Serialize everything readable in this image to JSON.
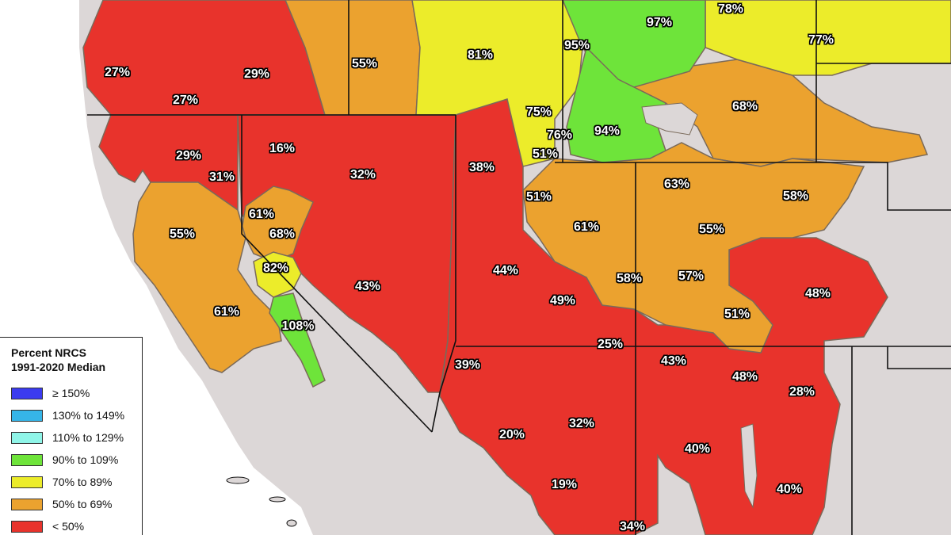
{
  "legend": {
    "title_line1": "Percent NRCS",
    "title_line2": "1991-2020 Median",
    "items": [
      {
        "label": "≥ 150%",
        "color": "#3b3bf0"
      },
      {
        "label": "130% to 149%",
        "color": "#36b5e8"
      },
      {
        "label": "110% to 129%",
        "color": "#8ff5e8"
      },
      {
        "label": "90% to 109%",
        "color": "#6ee43a"
      },
      {
        "label": "70% to 89%",
        "color": "#ecec2a"
      },
      {
        "label": "50% to 69%",
        "color": "#eba22f"
      },
      {
        "label": "< 50%",
        "color": "#e8332c"
      }
    ]
  },
  "colors": {
    "land": "#dcd7d7",
    "water": "#ffffff",
    "red": "#e8332c",
    "orange": "#eba22f",
    "yellow": "#ecec2a",
    "green": "#6ee43a",
    "border": "#111111",
    "basin_line": "#7a6a5a"
  },
  "basins": [
    {
      "label": "27%"
    },
    {
      "label": "29%"
    },
    {
      "label": "27%"
    },
    {
      "label": "55%"
    },
    {
      "label": "81%"
    },
    {
      "label": "95%"
    },
    {
      "label": "97%"
    },
    {
      "label": "78%"
    },
    {
      "label": "77%"
    },
    {
      "label": "75%"
    },
    {
      "label": "76%"
    },
    {
      "label": "94%"
    },
    {
      "label": "68%"
    },
    {
      "label": "29%"
    },
    {
      "label": "16%"
    },
    {
      "label": "31%"
    },
    {
      "label": "32%"
    },
    {
      "label": "38%"
    },
    {
      "label": "51%"
    },
    {
      "label": "51%"
    },
    {
      "label": "63%"
    },
    {
      "label": "58%"
    },
    {
      "label": "61%"
    },
    {
      "label": "55%"
    },
    {
      "label": "68%"
    },
    {
      "label": "61%"
    },
    {
      "label": "55%"
    },
    {
      "label": "82%"
    },
    {
      "label": "44%"
    },
    {
      "label": "43%"
    },
    {
      "label": "58%"
    },
    {
      "label": "57%"
    },
    {
      "label": "48%"
    },
    {
      "label": "61%"
    },
    {
      "label": "108%"
    },
    {
      "label": "49%"
    },
    {
      "label": "51%"
    },
    {
      "label": "25%"
    },
    {
      "label": "43%"
    },
    {
      "label": "39%"
    },
    {
      "label": "48%"
    },
    {
      "label": "28%"
    },
    {
      "label": "32%"
    },
    {
      "label": "20%"
    },
    {
      "label": "40%"
    },
    {
      "label": "19%"
    },
    {
      "label": "40%"
    },
    {
      "label": "34%"
    }
  ]
}
